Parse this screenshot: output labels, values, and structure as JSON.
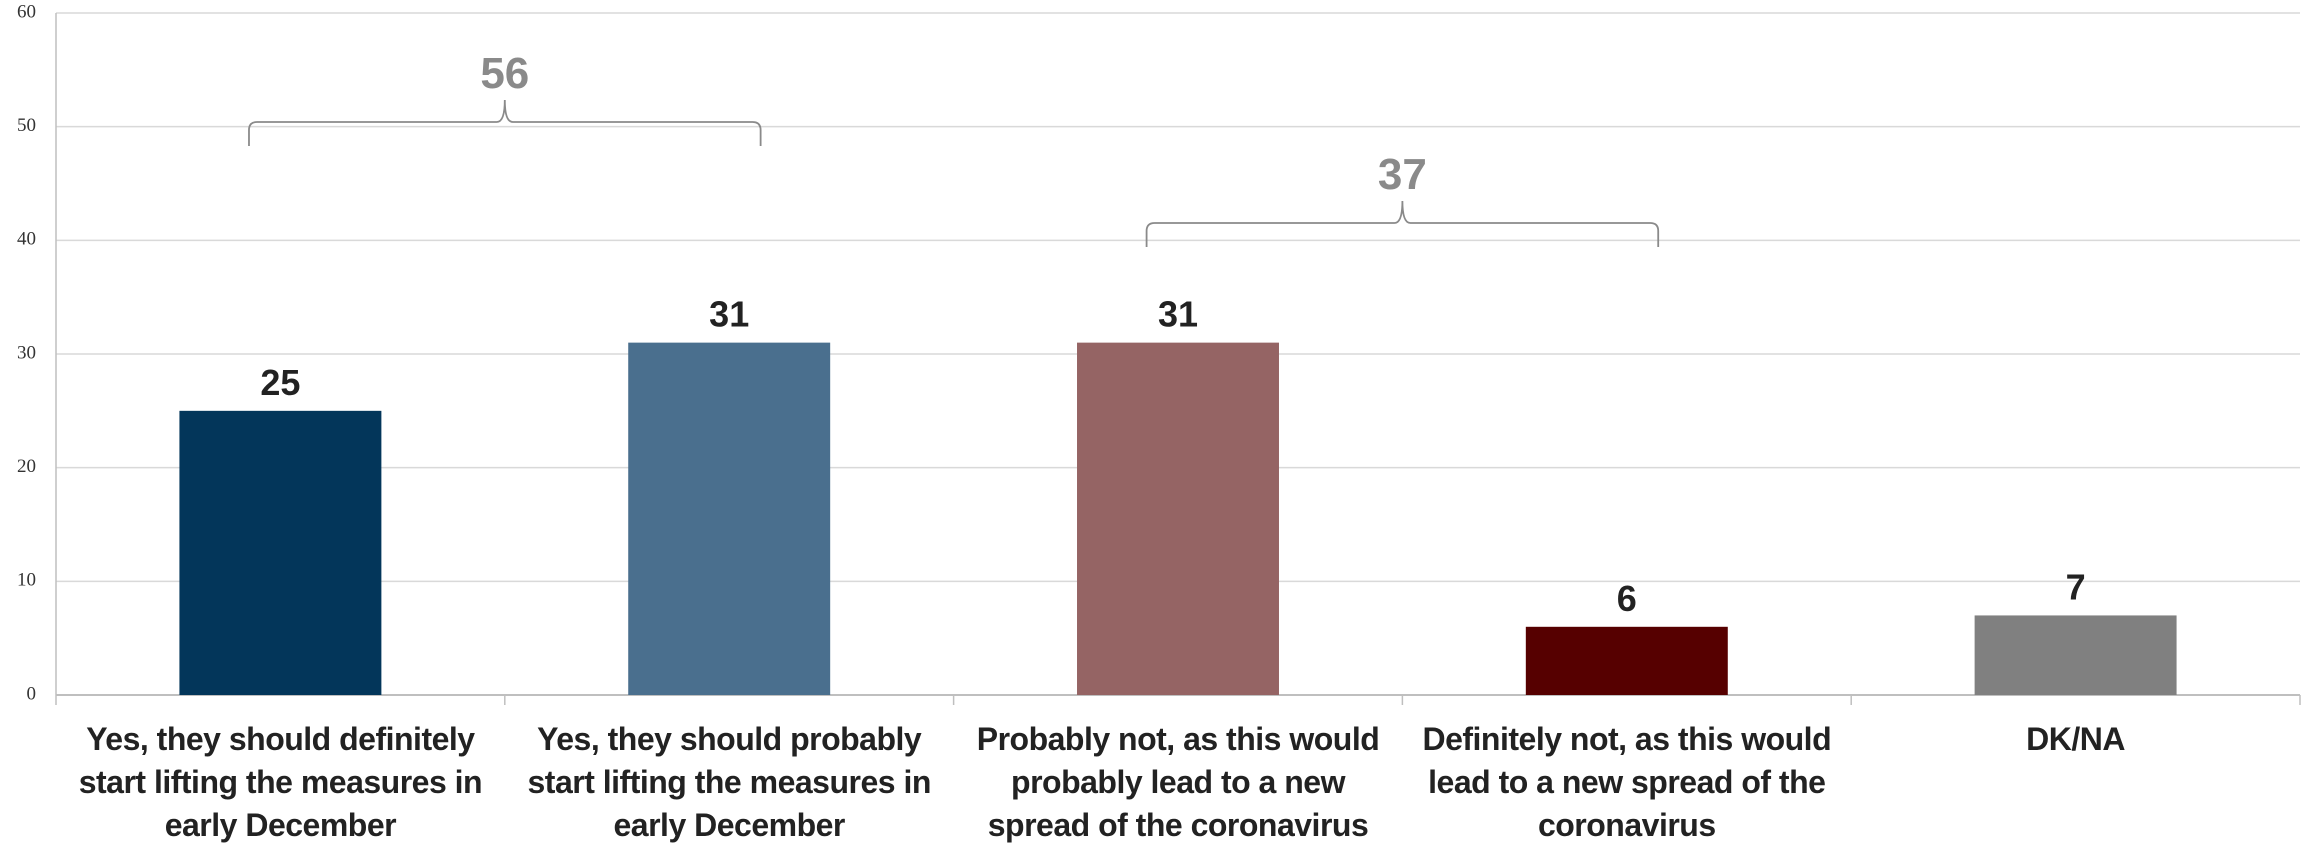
{
  "chart_data": {
    "type": "bar",
    "categories": [
      "Yes, they should definitely start lifting the measures in early December",
      "Yes, they should probably start lifting the measures in early December",
      "Probably not, as this would probably lead to a new spread of the coronavirus",
      "Definitely not, as this would lead to a new spread of the coronavirus",
      "DK/NA"
    ],
    "values": [
      25,
      31,
      31,
      6,
      7
    ],
    "colors": [
      "#03365a",
      "#4a6f8e",
      "#956464",
      "#560000",
      "#808080"
    ],
    "ylim": [
      0,
      60
    ],
    "yticks": [
      0,
      10,
      20,
      30,
      40,
      50,
      60
    ],
    "grid": true,
    "brackets": [
      56,
      37
    ]
  }
}
